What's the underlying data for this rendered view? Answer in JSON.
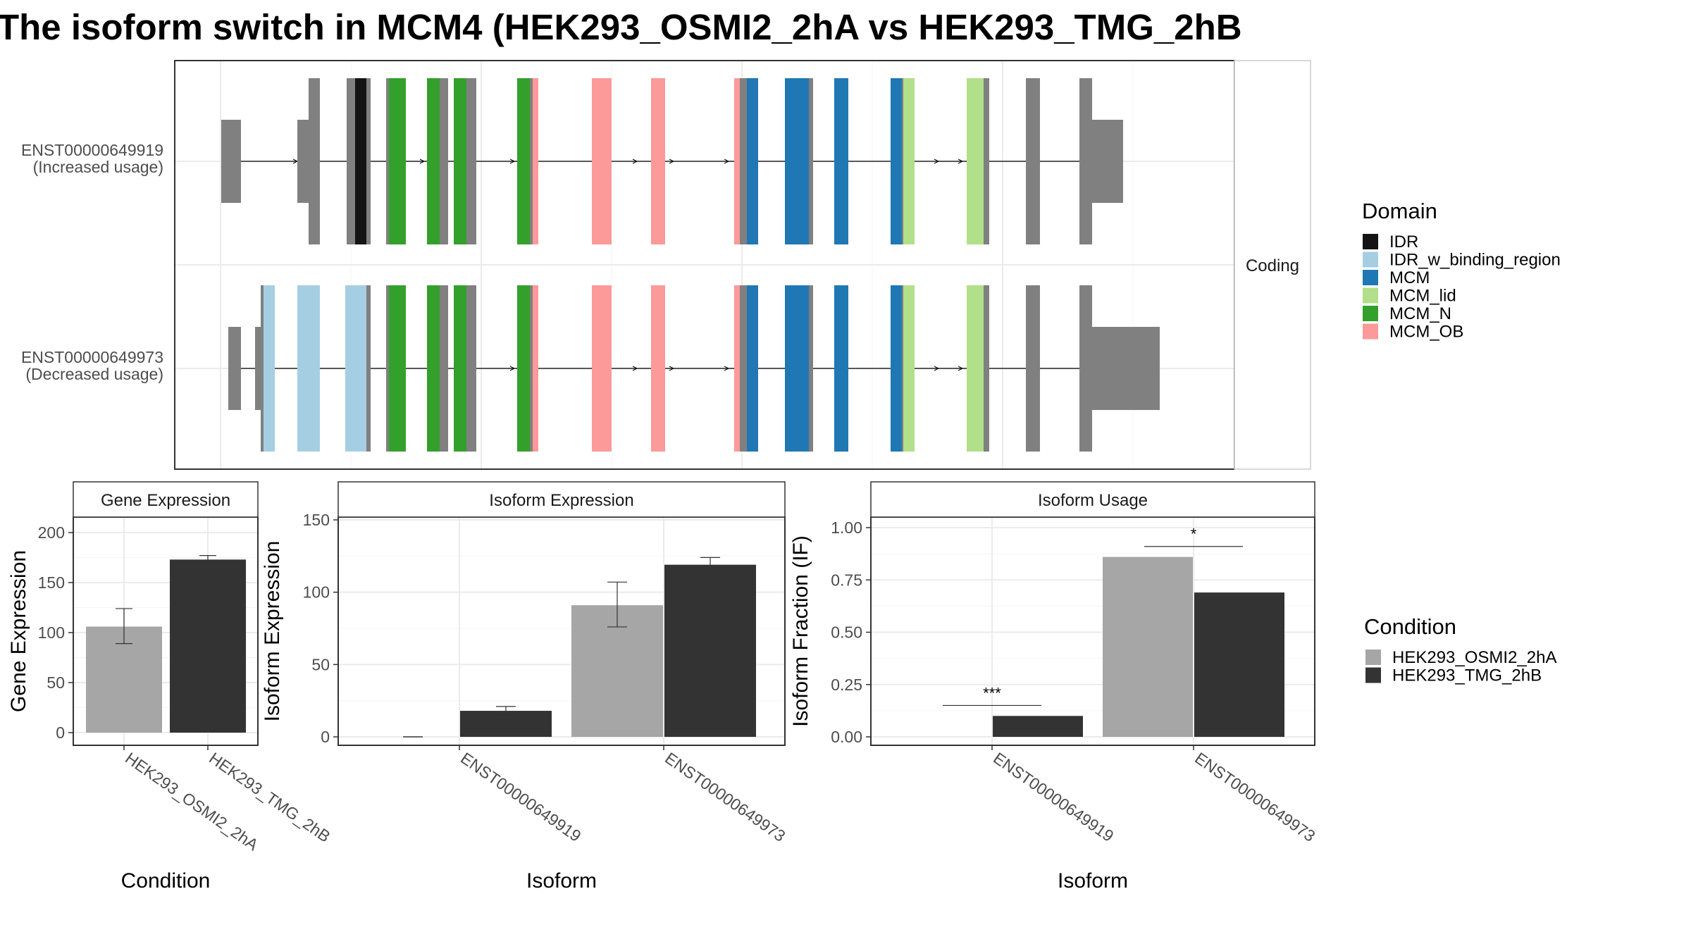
{
  "title": "The isoform switch in MCM4 (HEK293_OSMI2_2hA vs HEK293_TMG_2hB",
  "colors": {
    "gray_exon": "#808080",
    "IDR": "#141414",
    "IDR_w_binding_region": "#a6cee3",
    "MCM": "#1f78b4",
    "MCM_lid": "#b2df8a",
    "MCM_N": "#33a02c",
    "MCM_OB": "#fb9a99",
    "cond_a": "#a6a6a6",
    "cond_b": "#333333"
  },
  "structure": {
    "strip_label": "Coding",
    "tracks": [
      {
        "id": "ENST00000649919",
        "label": "ENST00000649919",
        "sublabel": "(Increased usage)",
        "exons": [
          {
            "start": 0,
            "end": 28,
            "tall": false
          },
          {
            "start": 108,
            "end": 140,
            "tall": false
          },
          {
            "start": 124,
            "end": 140,
            "tall": true
          },
          {
            "start": 178,
            "end": 212,
            "tall": true
          },
          {
            "start": 234,
            "end": 262,
            "tall": true
          },
          {
            "start": 292,
            "end": 322,
            "tall": true
          },
          {
            "start": 330,
            "end": 362,
            "tall": true
          },
          {
            "start": 420,
            "end": 450,
            "tall": true
          },
          {
            "start": 526,
            "end": 554,
            "tall": true
          },
          {
            "start": 610,
            "end": 630,
            "tall": true
          },
          {
            "start": 728,
            "end": 762,
            "tall": true
          },
          {
            "start": 800,
            "end": 840,
            "tall": true
          },
          {
            "start": 870,
            "end": 890,
            "tall": true
          },
          {
            "start": 950,
            "end": 984,
            "tall": true
          },
          {
            "start": 1058,
            "end": 1090,
            "tall": true
          },
          {
            "start": 1142,
            "end": 1162,
            "tall": true
          },
          {
            "start": 1218,
            "end": 1236,
            "tall": true
          },
          {
            "start": 1236,
            "end": 1280,
            "tall": false
          }
        ],
        "domains": [
          {
            "domain": "IDR",
            "start": 190,
            "end": 206
          },
          {
            "domain": "MCM_N",
            "start": 238,
            "end": 262
          },
          {
            "domain": "MCM_N",
            "start": 292,
            "end": 310
          },
          {
            "domain": "MCM_N",
            "start": 330,
            "end": 348
          },
          {
            "domain": "MCM_N",
            "start": 420,
            "end": 438
          },
          {
            "domain": "MCM_OB",
            "start": 442,
            "end": 450
          },
          {
            "domain": "MCM_OB",
            "start": 526,
            "end": 554
          },
          {
            "domain": "MCM_OB",
            "start": 610,
            "end": 630
          },
          {
            "domain": "MCM_OB",
            "start": 728,
            "end": 736
          },
          {
            "domain": "MCM",
            "start": 746,
            "end": 762
          },
          {
            "domain": "MCM",
            "start": 800,
            "end": 834
          },
          {
            "domain": "MCM",
            "start": 870,
            "end": 890
          },
          {
            "domain": "MCM",
            "start": 950,
            "end": 966
          },
          {
            "domain": "MCM_lid",
            "start": 968,
            "end": 984
          },
          {
            "domain": "MCM_lid",
            "start": 1058,
            "end": 1082
          }
        ],
        "arrows": [
          106,
          286,
          414,
          588,
          640,
          718,
          1016,
          1050
        ]
      },
      {
        "id": "ENST00000649973",
        "label": "ENST00000649973",
        "sublabel": "(Decreased usage)",
        "exons": [
          {
            "start": 10,
            "end": 28,
            "tall": false
          },
          {
            "start": 48,
            "end": 56,
            "tall": false
          },
          {
            "start": 56,
            "end": 76,
            "tall": true
          },
          {
            "start": 108,
            "end": 140,
            "tall": true
          },
          {
            "start": 176,
            "end": 212,
            "tall": true
          },
          {
            "start": 234,
            "end": 262,
            "tall": true
          },
          {
            "start": 292,
            "end": 322,
            "tall": true
          },
          {
            "start": 330,
            "end": 362,
            "tall": true
          },
          {
            "start": 420,
            "end": 450,
            "tall": true
          },
          {
            "start": 526,
            "end": 554,
            "tall": true
          },
          {
            "start": 610,
            "end": 630,
            "tall": true
          },
          {
            "start": 728,
            "end": 762,
            "tall": true
          },
          {
            "start": 800,
            "end": 840,
            "tall": true
          },
          {
            "start": 870,
            "end": 890,
            "tall": true
          },
          {
            "start": 950,
            "end": 984,
            "tall": true
          },
          {
            "start": 1058,
            "end": 1090,
            "tall": true
          },
          {
            "start": 1142,
            "end": 1162,
            "tall": true
          },
          {
            "start": 1218,
            "end": 1236,
            "tall": true
          },
          {
            "start": 1236,
            "end": 1332,
            "tall": false
          }
        ],
        "domains": [
          {
            "domain": "IDR_w_binding_region",
            "start": 60,
            "end": 76
          },
          {
            "domain": "IDR_w_binding_region",
            "start": 108,
            "end": 140
          },
          {
            "domain": "IDR_w_binding_region",
            "start": 176,
            "end": 206
          },
          {
            "domain": "MCM_N",
            "start": 238,
            "end": 262
          },
          {
            "domain": "MCM_N",
            "start": 292,
            "end": 310
          },
          {
            "domain": "MCM_N",
            "start": 330,
            "end": 348
          },
          {
            "domain": "MCM_N",
            "start": 420,
            "end": 438
          },
          {
            "domain": "MCM_OB",
            "start": 442,
            "end": 450
          },
          {
            "domain": "MCM_OB",
            "start": 526,
            "end": 554
          },
          {
            "domain": "MCM_OB",
            "start": 610,
            "end": 630
          },
          {
            "domain": "MCM_OB",
            "start": 728,
            "end": 736
          },
          {
            "domain": "MCM",
            "start": 746,
            "end": 762
          },
          {
            "domain": "MCM",
            "start": 800,
            "end": 834
          },
          {
            "domain": "MCM",
            "start": 870,
            "end": 890
          },
          {
            "domain": "MCM",
            "start": 950,
            "end": 966
          },
          {
            "domain": "MCM_lid",
            "start": 968,
            "end": 984
          },
          {
            "domain": "MCM_lid",
            "start": 1058,
            "end": 1082
          }
        ],
        "arrows": [
          414,
          588,
          640,
          718,
          1016,
          1050
        ]
      }
    ]
  },
  "domain_legend": {
    "title": "Domain",
    "items": [
      {
        "label": "IDR",
        "color": "#141414"
      },
      {
        "label": "IDR_w_binding_region",
        "color": "#a6cee3"
      },
      {
        "label": "MCM",
        "color": "#1f78b4"
      },
      {
        "label": "MCM_lid",
        "color": "#b2df8a"
      },
      {
        "label": "MCM_N",
        "color": "#33a02c"
      },
      {
        "label": "MCM_OB",
        "color": "#fb9a99"
      }
    ]
  },
  "condition_legend": {
    "title": "Condition",
    "items": [
      {
        "label": "HEK293_OSMI2_2hA",
        "color": "#a6a6a6"
      },
      {
        "label": "HEK293_TMG_2hB",
        "color": "#333333"
      }
    ]
  },
  "chart_data": [
    {
      "type": "bar",
      "title": "Gene Expression",
      "xlabel": "Condition",
      "ylabel": "Gene Expression",
      "ylim": [
        0,
        215
      ],
      "yticks": [
        0,
        50,
        100,
        150,
        200
      ],
      "categories": [
        "HEK293_OSMI2_2hA",
        "HEK293_TMG_2hB"
      ],
      "values": [
        106,
        173
      ],
      "errors": [
        [
          89,
          124
        ],
        [
          169,
          177
        ]
      ],
      "colors": [
        "#a6a6a6",
        "#333333"
      ]
    },
    {
      "type": "bar",
      "title": "Isoform Expression",
      "xlabel": "Isoform",
      "ylabel": "Isoform Expression",
      "ylim": [
        0,
        153
      ],
      "yticks": [
        0,
        50,
        100,
        150
      ],
      "categories": [
        "ENST00000649919",
        "ENST00000649973"
      ],
      "series": [
        {
          "name": "HEK293_OSMI2_2hA",
          "values": [
            0,
            91
          ],
          "errors": [
            [
              0,
              0
            ],
            [
              76,
              107
            ]
          ],
          "color": "#a6a6a6"
        },
        {
          "name": "HEK293_TMG_2hB",
          "values": [
            18,
            119
          ],
          "errors": [
            [
              15,
              21
            ],
            [
              113,
              124
            ]
          ],
          "color": "#333333"
        }
      ]
    },
    {
      "type": "bar",
      "title": "Isoform Usage",
      "xlabel": "Isoform",
      "ylabel": "Isoform Fraction (IF)",
      "ylim": [
        0,
        1.0
      ],
      "yticks": [
        "0.00",
        "0.25",
        "0.50",
        "0.75",
        "1.00"
      ],
      "categories": [
        "ENST00000649919",
        "ENST00000649973"
      ],
      "series": [
        {
          "name": "HEK293_OSMI2_2hA",
          "values": [
            0,
            0.86
          ],
          "color": "#a6a6a6"
        },
        {
          "name": "HEK293_TMG_2hB",
          "values": [
            0.1,
            0.69
          ],
          "color": "#333333"
        }
      ],
      "significance": [
        {
          "category": "ENST00000649919",
          "y": 0.15,
          "label": "***"
        },
        {
          "category": "ENST00000649973",
          "y": 0.91,
          "label": "*"
        }
      ]
    }
  ]
}
